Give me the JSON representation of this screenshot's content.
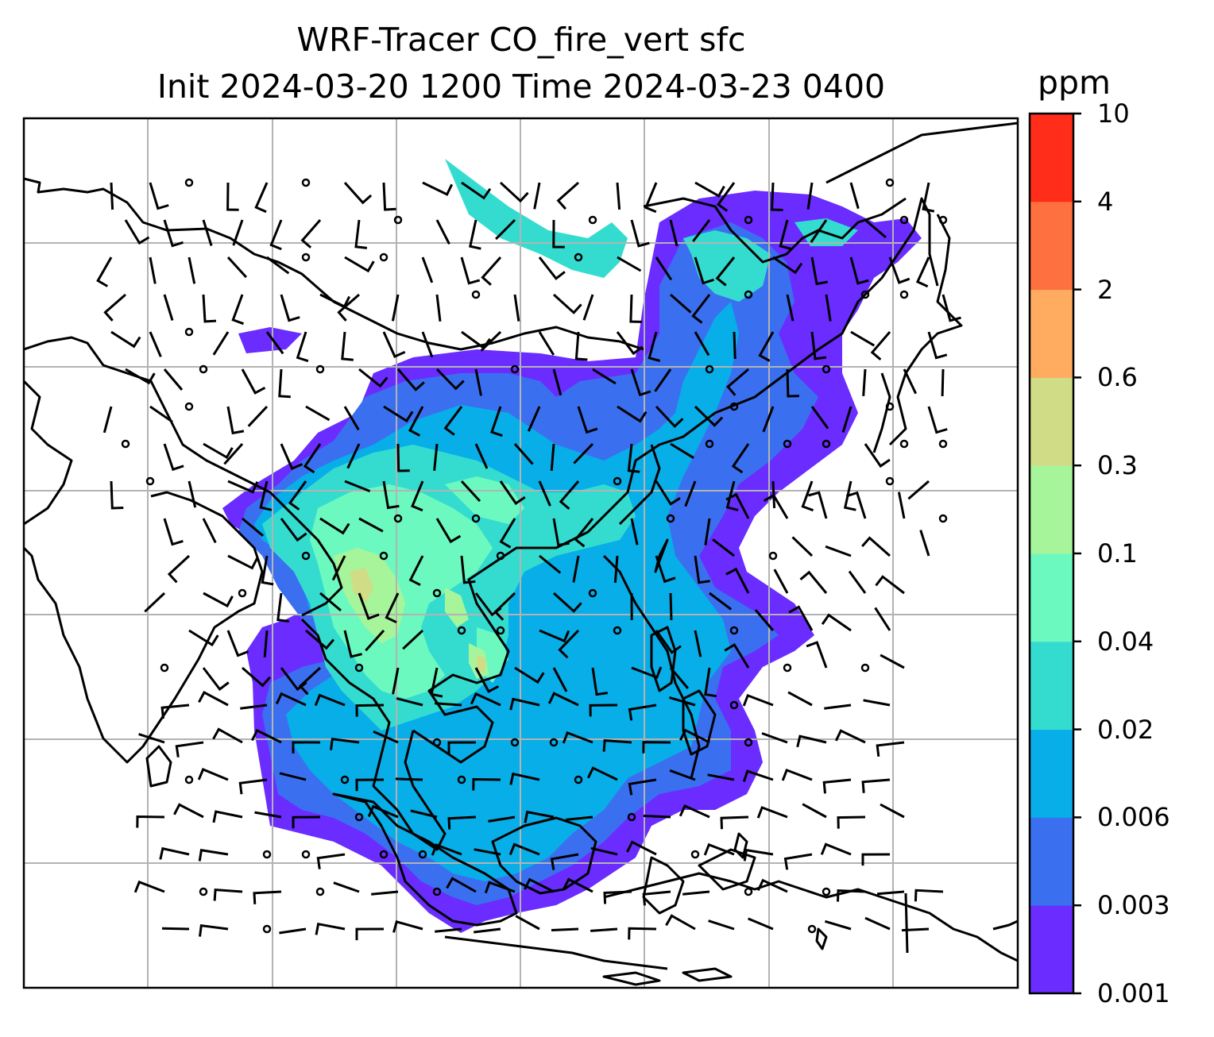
{
  "title": {
    "line1": "WRF-Tracer CO_fire_vert sfc",
    "line2": "Init 2024-03-20 1200 Time 2024-03-23 0400"
  },
  "colorbar": {
    "unit": "ppm",
    "ticks": [
      "0.001",
      "0.003",
      "0.006",
      "0.02",
      "0.04",
      "0.1",
      "0.3",
      "0.6",
      "2",
      "4",
      "10"
    ],
    "colors": [
      "#6a2cff",
      "#3a70f0",
      "#08aee8",
      "#34dcd0",
      "#6cf9c0",
      "#a6f59a",
      "#d0dc86",
      "#ffac60",
      "#ff7040",
      "#ff2d1a"
    ]
  },
  "map": {
    "gridlines": true,
    "coastline_color": "#000000",
    "grid_color": "#b3b3b3",
    "wind_barbs": true
  }
}
